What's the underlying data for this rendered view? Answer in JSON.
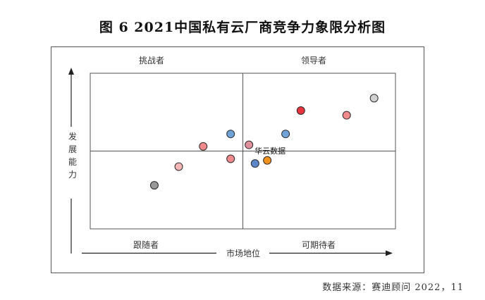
{
  "title": "图 6  2021中国私有云厂商竞争力象限分析图",
  "source": "数据来源：赛迪顾问  2022，11",
  "chart_data": {
    "type": "scatter",
    "xlabel": "市场地位",
    "ylabel": "发展能力",
    "xlim": [
      0,
      10
    ],
    "ylim": [
      0,
      10
    ],
    "quadrants": {
      "top_left": "挑战者",
      "top_right": "领导者",
      "bottom_left": "跟随者",
      "bottom_right": "可期待者"
    },
    "points": [
      {
        "x": 9.3,
        "y": 8.4,
        "color": "#d0d0d0",
        "label": ""
      },
      {
        "x": 6.9,
        "y": 7.6,
        "color": "#e8343c",
        "label": ""
      },
      {
        "x": 8.4,
        "y": 7.3,
        "color": "#f08a8c",
        "label": ""
      },
      {
        "x": 4.6,
        "y": 6.1,
        "color": "#6fa3d8",
        "label": ""
      },
      {
        "x": 6.4,
        "y": 6.1,
        "color": "#6fa3d8",
        "label": ""
      },
      {
        "x": 3.7,
        "y": 5.3,
        "color": "#f08a8c",
        "label": ""
      },
      {
        "x": 5.2,
        "y": 5.4,
        "color": "#e0909a",
        "label": ""
      },
      {
        "x": 4.6,
        "y": 4.5,
        "color": "#f08a8c",
        "label": ""
      },
      {
        "x": 5.8,
        "y": 4.4,
        "color": "#f2901e",
        "label": "华云数据"
      },
      {
        "x": 5.4,
        "y": 4.2,
        "color": "#5b86c9",
        "label": ""
      },
      {
        "x": 2.9,
        "y": 4.0,
        "color": "#f4b5b5",
        "label": ""
      },
      {
        "x": 2.1,
        "y": 2.8,
        "color": "#999999",
        "label": ""
      }
    ]
  }
}
